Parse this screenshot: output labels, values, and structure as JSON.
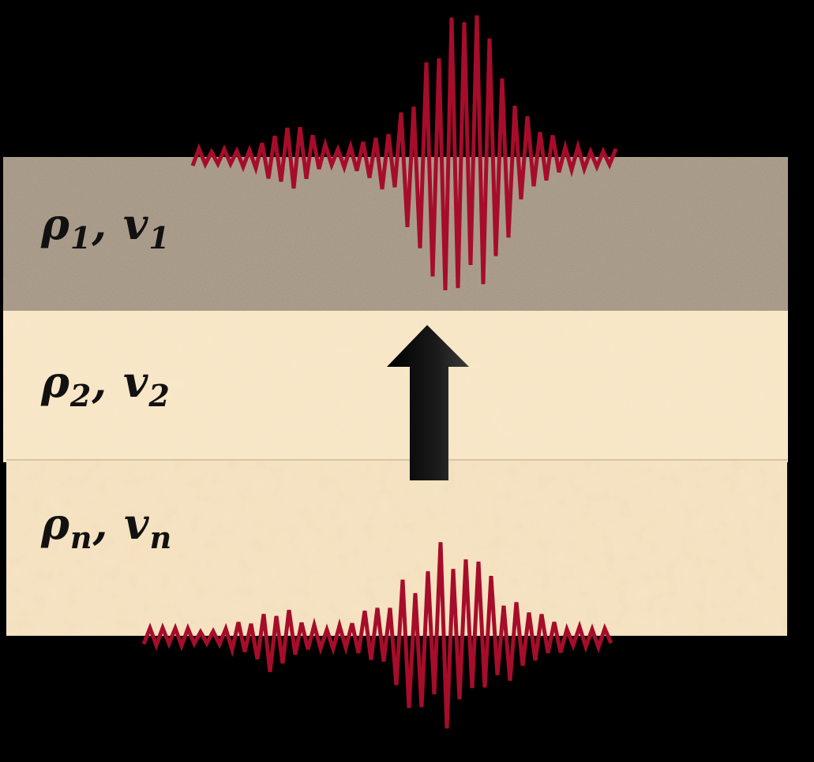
{
  "colors": {
    "background": "#000000",
    "layer1": "#9e9176",
    "layer2": "#f8e6c6",
    "layer3": "#f4e0be",
    "wave": "#a60d2a",
    "arrow": "#000000"
  },
  "layers": [
    {
      "symbol_a": "ρ",
      "sub_a": "1",
      "separator": ", ",
      "symbol_b": "v",
      "sub_b": "1"
    },
    {
      "symbol_a": "ρ",
      "sub_a": "2",
      "separator": ", ",
      "symbol_b": "v",
      "sub_b": "2"
    },
    {
      "symbol_a": "ρ",
      "sub_a": "n",
      "separator": ", ",
      "symbol_b": "v",
      "sub_b": "n"
    }
  ],
  "icons": {
    "arrow": "up-arrow-icon",
    "wave_top": "seismic-wave-icon",
    "wave_bottom": "seismic-wave-icon"
  }
}
